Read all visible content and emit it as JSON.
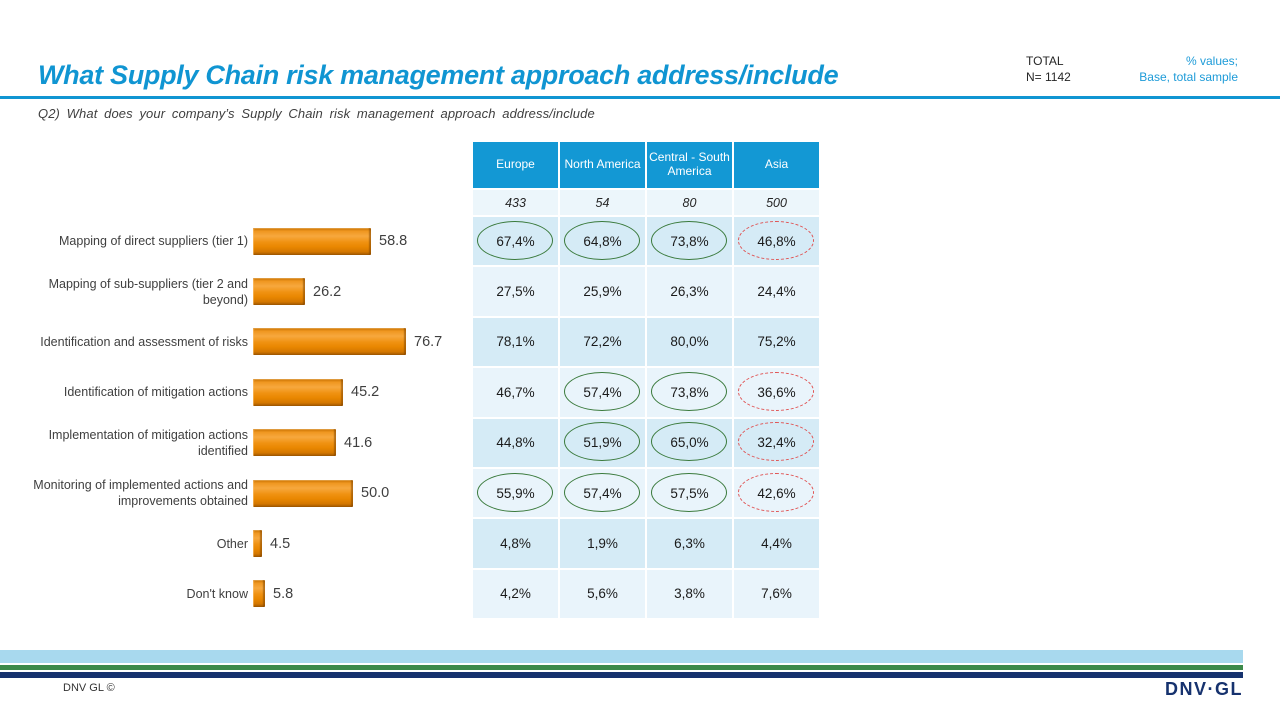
{
  "header": {
    "title": "What Supply Chain risk management approach address/include",
    "total_label": "TOTAL",
    "total_n": "N= 1142",
    "note_line1": "% values;",
    "note_line2": "Base, total sample",
    "subtitle": "Q2) What does your company’s Supply Chain risk management approach address/include"
  },
  "colors": {
    "accent_cyan": "#1095d2",
    "table_header_blue": "#1398d4",
    "row_dark": "#d5ebf6",
    "row_light": "#e9f4fb",
    "bar_orange": "#ec8a12",
    "highlight_green": "#3a7a3c",
    "highlight_red": "#e05252",
    "stripe_light_blue": "#a8d9ee",
    "stripe_green": "#3c8a4a",
    "stripe_navy": "#16326e"
  },
  "chart_data": {
    "type": "bar",
    "orientation": "horizontal",
    "title": "What Supply Chain risk management approach address/include",
    "xlabel": "",
    "ylabel": "",
    "xlim": [
      0,
      100
    ],
    "grid": false,
    "bar_color": "#ec8a12",
    "categories": [
      "Mapping of direct suppliers (tier 1)",
      "Mapping of sub-suppliers (tier 2 and beyond)",
      "Identification and assessment of risks",
      "Identification of mitigation actions",
      "Implementation of mitigation actions identified",
      "Monitoring of implemented actions and improvements obtained",
      "Other",
      "Don't know"
    ],
    "values": [
      58.8,
      26.2,
      76.7,
      45.2,
      41.6,
      50.0,
      4.5,
      5.8
    ],
    "value_labels": [
      "58.8",
      "26.2",
      "76.7",
      "45.2",
      "41.6",
      "50.0",
      "4.5",
      "5.8"
    ]
  },
  "table": {
    "columns": [
      "Europe",
      "North America",
      "Central - South America",
      "Asia"
    ],
    "base_values": [
      "433",
      "54",
      "80",
      "500"
    ],
    "rows": [
      {
        "cells": [
          {
            "text": "67,4%",
            "mark": "green"
          },
          {
            "text": "64,8%",
            "mark": "green"
          },
          {
            "text": "73,8%",
            "mark": "green"
          },
          {
            "text": "46,8%",
            "mark": "red"
          }
        ]
      },
      {
        "cells": [
          {
            "text": "27,5%",
            "mark": "none"
          },
          {
            "text": "25,9%",
            "mark": "none"
          },
          {
            "text": "26,3%",
            "mark": "none"
          },
          {
            "text": "24,4%",
            "mark": "none"
          }
        ]
      },
      {
        "cells": [
          {
            "text": "78,1%",
            "mark": "none"
          },
          {
            "text": "72,2%",
            "mark": "none"
          },
          {
            "text": "80,0%",
            "mark": "none"
          },
          {
            "text": "75,2%",
            "mark": "none"
          }
        ]
      },
      {
        "cells": [
          {
            "text": "46,7%",
            "mark": "none"
          },
          {
            "text": "57,4%",
            "mark": "green"
          },
          {
            "text": "73,8%",
            "mark": "green"
          },
          {
            "text": "36,6%",
            "mark": "red"
          }
        ]
      },
      {
        "cells": [
          {
            "text": "44,8%",
            "mark": "none"
          },
          {
            "text": "51,9%",
            "mark": "green"
          },
          {
            "text": "65,0%",
            "mark": "green"
          },
          {
            "text": "32,4%",
            "mark": "red"
          }
        ]
      },
      {
        "cells": [
          {
            "text": "55,9%",
            "mark": "green"
          },
          {
            "text": "57,4%",
            "mark": "green"
          },
          {
            "text": "57,5%",
            "mark": "green"
          },
          {
            "text": "42,6%",
            "mark": "red"
          }
        ]
      },
      {
        "cells": [
          {
            "text": "4,8%",
            "mark": "none"
          },
          {
            "text": "1,9%",
            "mark": "none"
          },
          {
            "text": "6,3%",
            "mark": "none"
          },
          {
            "text": "4,4%",
            "mark": "none"
          }
        ]
      },
      {
        "cells": [
          {
            "text": "4,2%",
            "mark": "none"
          },
          {
            "text": "5,6%",
            "mark": "none"
          },
          {
            "text": "3,8%",
            "mark": "none"
          },
          {
            "text": "7,6%",
            "mark": "none"
          }
        ]
      }
    ]
  },
  "footer": {
    "copyright": "DNV GL ©",
    "logo_text": "DNV·GL"
  }
}
